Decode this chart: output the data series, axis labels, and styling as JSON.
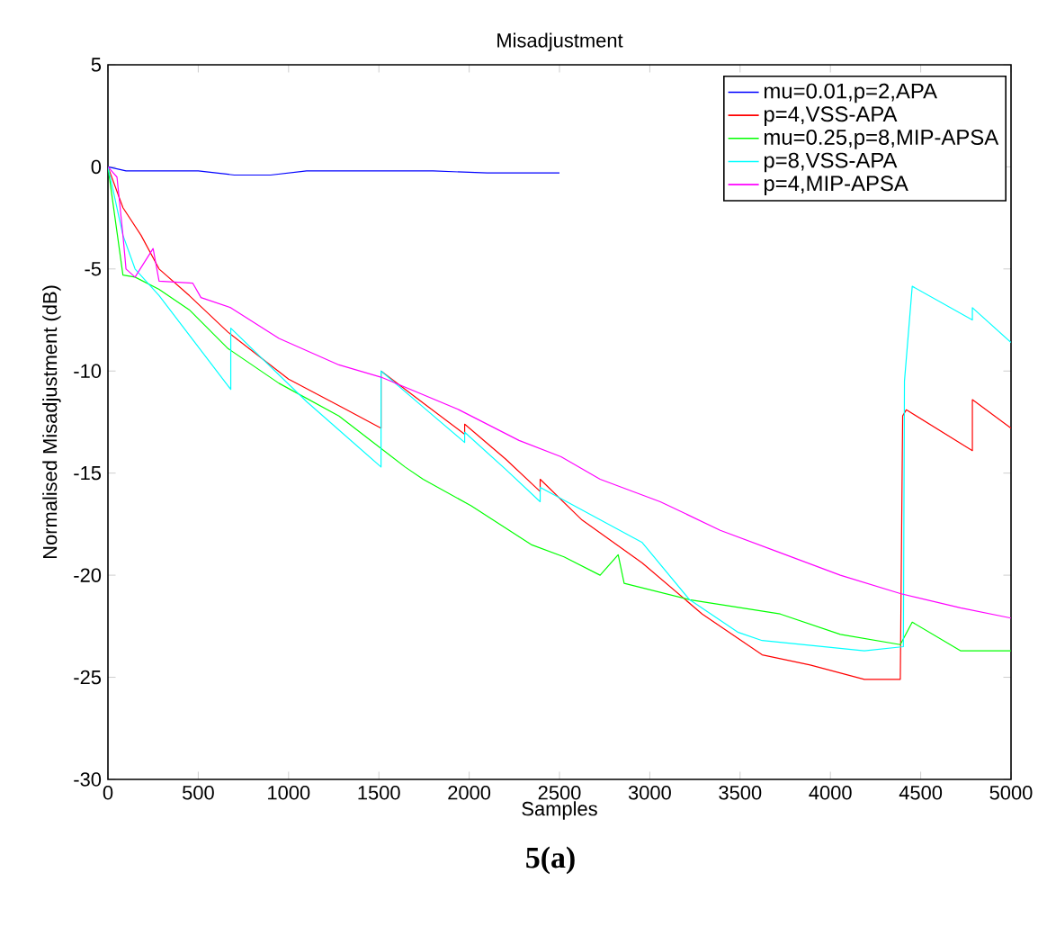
{
  "chart_data": {
    "type": "line",
    "title": "Misadjustment",
    "xlabel": "Samples",
    "ylabel": "Normalised Misadjustment (dB)",
    "annotations": [
      "5(a)"
    ],
    "xlim": [
      0,
      5000
    ],
    "ylim": [
      -30,
      5
    ],
    "xticks": [
      0,
      500,
      1000,
      1500,
      2000,
      2500,
      3000,
      3500,
      4000,
      4500,
      5000
    ],
    "yticks": [
      -30,
      -25,
      -20,
      -15,
      -10,
      -5,
      0,
      5
    ],
    "legend": "top right",
    "grid": false,
    "line_style": "solid",
    "series": [
      {
        "name": "mu=0.01,p=2,APA",
        "color": "#0000ff",
        "x": [
          0,
          100,
          500,
          700,
          900,
          1100,
          1300,
          1800,
          2100,
          2500
        ],
        "values": [
          0,
          -0.2,
          -0.2,
          -0.4,
          -0.4,
          -0.2,
          -0.2,
          -0.2,
          -0.3,
          -0.3
        ]
      },
      {
        "name": "p=4,VSS-APA",
        "color": "#ff0000",
        "x": [
          0,
          83,
          183,
          283,
          450,
          665,
          1000,
          1300,
          1512,
          1512,
          1750,
          1975,
          1975,
          2200,
          2393,
          2393,
          2625,
          2958,
          3290,
          3622,
          3888,
          4188,
          4387,
          4400,
          4420,
          4786,
          4786,
          5000
        ],
        "values": [
          0,
          -2.0,
          -3.35,
          -5.0,
          -6.3,
          -8.1,
          -10.4,
          -11.8,
          -12.8,
          -10.0,
          -11.6,
          -13.1,
          -12.6,
          -14.3,
          -15.9,
          -15.3,
          -17.3,
          -19.4,
          -21.9,
          -23.9,
          -24.4,
          -25.1,
          -25.1,
          -12.2,
          -11.9,
          -13.9,
          -11.4,
          -12.8
        ]
      },
      {
        "name": "mu=0.25,p=8,MIP-APSA",
        "color": "#00ff00",
        "x": [
          0,
          83,
          150,
          283,
          450,
          665,
          947,
          1279,
          1645,
          1745,
          2011,
          2343,
          2525,
          2725,
          2825,
          2858,
          3220,
          3722,
          4055,
          4387,
          4453,
          4720,
          5000
        ],
        "values": [
          0,
          -5.3,
          -5.4,
          -6.0,
          -7.0,
          -8.9,
          -10.6,
          -12.2,
          -14.7,
          -15.3,
          -16.6,
          -18.5,
          -19.1,
          -20.0,
          -19.0,
          -20.4,
          -21.2,
          -21.9,
          -22.9,
          -23.4,
          -22.3,
          -23.7,
          -23.7
        ]
      },
      {
        "name": "p=8,VSS-APA",
        "color": "#00ffff",
        "x": [
          0,
          83,
          150,
          283,
          680,
          680,
          1100,
          1512,
          1512,
          1750,
          1975,
          1975,
          2200,
          2393,
          2393,
          2958,
          3220,
          3490,
          3622,
          4188,
          4404,
          4410,
          4453,
          4786,
          4786,
          5000
        ],
        "values": [
          0,
          -3.35,
          -5.0,
          -6.3,
          -10.9,
          -7.9,
          -11.5,
          -14.7,
          -10.0,
          -11.8,
          -13.5,
          -13.0,
          -14.8,
          -16.4,
          -15.7,
          -18.4,
          -21.2,
          -22.8,
          -23.2,
          -23.7,
          -23.5,
          -10.5,
          -5.85,
          -7.5,
          -6.9,
          -8.6
        ]
      },
      {
        "name": "p=4,MIP-APSA",
        "color": "#ff00ff",
        "x": [
          0,
          50,
          83,
          100,
          150,
          250,
          283,
          470,
          515,
          680,
          947,
          1279,
          1512,
          1944,
          2276,
          2509,
          2725,
          3058,
          3390,
          3722,
          4055,
          4387,
          4720,
          5000
        ],
        "values": [
          0,
          -0.5,
          -3.35,
          -5.0,
          -5.4,
          -4.0,
          -5.6,
          -5.7,
          -6.4,
          -6.9,
          -8.4,
          -9.7,
          -10.3,
          -11.9,
          -13.4,
          -14.2,
          -15.3,
          -16.4,
          -17.8,
          -18.9,
          -20.0,
          -20.9,
          -21.6,
          -22.1
        ]
      }
    ]
  }
}
